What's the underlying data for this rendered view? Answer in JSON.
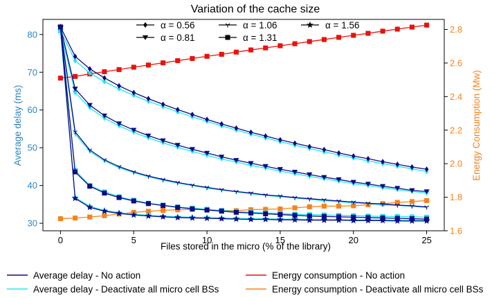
{
  "chart_data": {
    "type": "line",
    "title": "Variation of the cache size",
    "xlabel": "Files stored in the micro (% of the library)",
    "ylabel_left": "Average delay (ms)",
    "ylabel_right": "Energy Consumption (Mw)",
    "xlim": [
      -1.2,
      26.2
    ],
    "ylim_left": [
      28,
      84
    ],
    "ylim_right": [
      1.6,
      2.86
    ],
    "xticks": [
      "0",
      "5",
      "10",
      "15",
      "20",
      "25"
    ],
    "yticks_left": [
      "30",
      "40",
      "50",
      "60",
      "70",
      "80"
    ],
    "yticks_right": [
      "1.6",
      "1.8",
      "2.0",
      "2.2",
      "2.4",
      "2.6",
      "2.8"
    ],
    "grid": false,
    "x": [
      0,
      1,
      2,
      3,
      4,
      5,
      6,
      7,
      8,
      9,
      10,
      11,
      12,
      13,
      14,
      15,
      16,
      17,
      18,
      19,
      20,
      21,
      22,
      23,
      24,
      25
    ],
    "alpha_legend": [
      {
        "label": "α = 0.56",
        "marker": "diamond"
      },
      {
        "label": "α = 0.81",
        "marker": "triangle-down"
      },
      {
        "label": "α = 1.06",
        "marker": "tri-down"
      },
      {
        "label": "α = 1.31",
        "marker": "square"
      },
      {
        "label": "α = 1.56",
        "marker": "star"
      }
    ],
    "line_legend": [
      {
        "label": "Average delay - No action",
        "color": "#0b0b85"
      },
      {
        "label": "Average delay - Deactivate all micro cell BSs",
        "color": "#22e5f2"
      },
      {
        "label": "Energy consumption - No action",
        "color": "#e8130c"
      },
      {
        "label": "Energy consumption - Deactivate all micro cell BSs",
        "color": "#f7821a"
      }
    ],
    "colors": {
      "delay_no_action": "#0b0b85",
      "delay_deactivate": "#22e5f2",
      "energy_no_action": "#e8130c",
      "energy_deactivate": "#f7821a",
      "left_axis": "#2b86c0",
      "right_axis": "#f7821a"
    },
    "series": [
      {
        "group": "delay_no_action",
        "alpha": "0.56",
        "axis": "left",
        "marker": "diamond",
        "values": [
          82,
          74.2,
          70.9,
          68.5,
          66.4,
          64.6,
          63.0,
          61.5,
          60.1,
          58.8,
          57.5,
          56.3,
          55.2,
          54.1,
          53.1,
          52.1,
          51.2,
          50.3,
          49.5,
          48.6,
          47.8,
          47.1,
          46.3,
          45.6,
          44.9,
          44.3
        ]
      },
      {
        "group": "delay_deactivate",
        "alpha": "0.56",
        "axis": "left",
        "marker": "diamond",
        "values": [
          81.0,
          73.1,
          69.8,
          67.5,
          65.6,
          63.9,
          62.3,
          60.9,
          59.5,
          58.2,
          57.0,
          55.8,
          54.7,
          53.6,
          52.6,
          51.6,
          50.7,
          49.8,
          48.9,
          48.1,
          47.3,
          46.5,
          45.8,
          45.1,
          44.4,
          43.7
        ]
      },
      {
        "group": "delay_no_action",
        "alpha": "0.81",
        "axis": "left",
        "marker": "triangle-down",
        "values": [
          82,
          65.6,
          61.3,
          58.5,
          56.4,
          54.7,
          53.2,
          51.9,
          50.7,
          49.6,
          48.6,
          47.6,
          46.7,
          45.9,
          45.1,
          44.3,
          43.6,
          42.9,
          42.2,
          41.6,
          40.9,
          40.4,
          39.8,
          39.3,
          38.7,
          38.4
        ]
      },
      {
        "group": "delay_deactivate",
        "alpha": "0.81",
        "axis": "left",
        "marker": "triangle-down",
        "values": [
          81.0,
          64.6,
          60.6,
          57.8,
          55.8,
          54.1,
          52.6,
          51.3,
          50.1,
          49.0,
          48.0,
          47.0,
          46.2,
          45.3,
          44.6,
          43.8,
          43.1,
          42.4,
          41.8,
          41.1,
          40.5,
          40.0,
          39.4,
          38.9,
          38.4,
          38.0
        ]
      },
      {
        "group": "delay_no_action",
        "alpha": "1.06",
        "axis": "left",
        "marker": "tri-down",
        "values": [
          82,
          54.2,
          49.4,
          46.8,
          45.0,
          43.6,
          42.5,
          41.6,
          40.8,
          40.1,
          39.5,
          38.9,
          38.4,
          38.0,
          37.5,
          37.2,
          36.8,
          36.5,
          36.2,
          35.9,
          35.6,
          35.3,
          35.1,
          34.8,
          34.6,
          34.3
        ]
      },
      {
        "group": "delay_deactivate",
        "alpha": "1.06",
        "axis": "left",
        "marker": "tri-down",
        "values": [
          81.0,
          53.6,
          49.0,
          46.5,
          44.7,
          43.4,
          42.3,
          41.4,
          40.6,
          40.0,
          39.3,
          38.8,
          38.3,
          37.8,
          37.4,
          37.0,
          36.7,
          36.3,
          36.0,
          35.7,
          35.4,
          35.2,
          34.9,
          34.7,
          34.5,
          34.2
        ]
      },
      {
        "group": "delay_no_action",
        "alpha": "1.31",
        "axis": "left",
        "marker": "square",
        "values": [
          82,
          43.6,
          39.8,
          38.0,
          36.8,
          35.9,
          35.2,
          34.7,
          34.2,
          33.8,
          33.5,
          33.2,
          32.9,
          32.7,
          32.5,
          32.3,
          32.1,
          31.9,
          31.8,
          31.7,
          31.6,
          31.5,
          31.4,
          31.3,
          31.2,
          31.1
        ]
      },
      {
        "group": "delay_deactivate",
        "alpha": "1.31",
        "axis": "left",
        "marker": "square",
        "values": [
          81.0,
          44.0,
          40.0,
          38.3,
          37.0,
          36.1,
          35.3,
          34.8,
          34.3,
          34.0,
          33.7,
          33.4,
          33.1,
          32.9,
          32.7,
          32.6,
          32.4,
          32.3,
          32.2,
          32.1,
          32.0,
          31.9,
          31.8,
          31.8,
          31.7,
          31.6
        ]
      },
      {
        "group": "delay_no_action",
        "alpha": "1.56",
        "axis": "left",
        "marker": "star",
        "values": [
          82,
          36.6,
          34.2,
          33.2,
          32.6,
          32.2,
          31.9,
          31.7,
          31.5,
          31.4,
          31.3,
          31.2,
          31.1,
          31.0,
          31.0,
          30.9,
          30.9,
          30.8,
          30.8,
          30.8,
          30.7,
          30.7,
          30.7,
          30.6,
          30.6,
          30.6
        ]
      },
      {
        "group": "delay_deactivate",
        "alpha": "1.56",
        "axis": "left",
        "marker": "star",
        "values": [
          81.0,
          36.8,
          34.5,
          33.4,
          32.8,
          32.4,
          32.1,
          31.9,
          31.7,
          31.6,
          31.5,
          31.4,
          31.3,
          31.2,
          31.2,
          31.1,
          31.1,
          31.0,
          31.0,
          31.0,
          30.9,
          30.9,
          30.9,
          30.8,
          30.8,
          30.8
        ]
      },
      {
        "group": "energy_no_action",
        "axis": "right",
        "marker": "square",
        "values": [
          2.51,
          2.52,
          2.535,
          2.548,
          2.561,
          2.575,
          2.588,
          2.601,
          2.614,
          2.627,
          2.64,
          2.652,
          2.665,
          2.678,
          2.69,
          2.703,
          2.715,
          2.728,
          2.74,
          2.753,
          2.765,
          2.777,
          2.79,
          2.802,
          2.814,
          2.826
        ]
      },
      {
        "group": "energy_deactivate",
        "axis": "right",
        "marker": "square",
        "values": [
          1.672,
          1.676,
          1.682,
          1.69,
          1.7,
          1.71,
          1.716,
          1.722,
          1.725,
          1.727,
          1.725,
          1.722,
          1.72,
          1.726,
          1.728,
          1.73,
          1.737,
          1.743,
          1.747,
          1.747,
          1.749,
          1.755,
          1.762,
          1.769,
          1.774,
          1.78
        ]
      }
    ]
  }
}
